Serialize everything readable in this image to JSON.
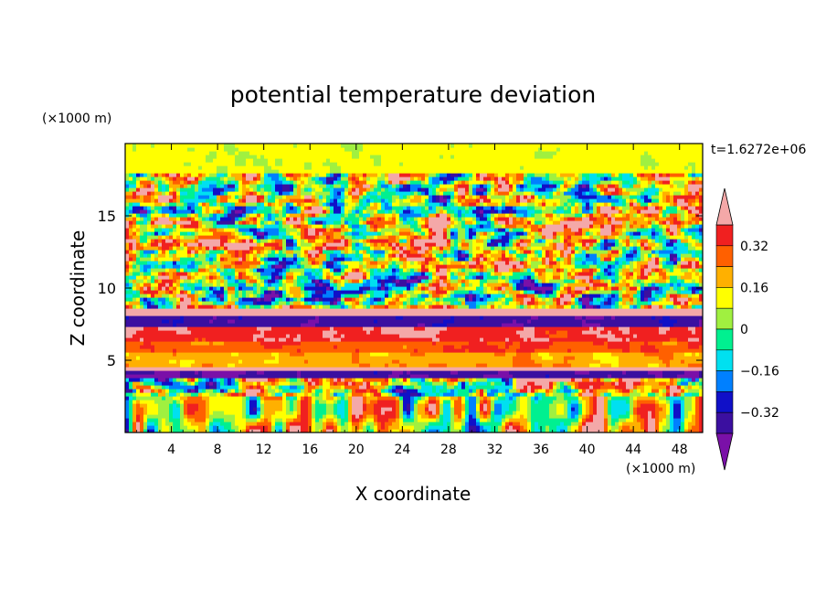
{
  "chart_data": {
    "type": "heatmap",
    "title": "potential temperature deviation",
    "xlabel": "X coordinate",
    "ylabel": "Z coordinate",
    "x_unit": "(×1000 m)",
    "y_unit": "(×1000 m)",
    "time_label": "t=1.6272e+06",
    "xlim": [
      0,
      50
    ],
    "ylim": [
      0,
      20
    ],
    "x_ticks": [
      "4",
      "8",
      "12",
      "16",
      "20",
      "24",
      "28",
      "32",
      "36",
      "40",
      "44",
      "48"
    ],
    "x_tick_values": [
      4,
      8,
      12,
      16,
      20,
      24,
      28,
      32,
      36,
      40,
      44,
      48
    ],
    "y_ticks": [
      "5",
      "10",
      "15"
    ],
    "y_tick_values": [
      5,
      10,
      15
    ],
    "colorbar": {
      "levels": [
        -0.48,
        -0.4,
        -0.32,
        -0.24,
        -0.16,
        -0.08,
        0,
        0.08,
        0.16,
        0.24,
        0.32,
        0.4,
        0.48
      ],
      "labels": [
        "0.32",
        "0.16",
        "0",
        "−0.16",
        "−0.32"
      ],
      "label_values": [
        0.32,
        0.16,
        0,
        -0.16,
        -0.32
      ],
      "colors": [
        "#7a10a8",
        "#3b0fa0",
        "#1010c8",
        "#0080ff",
        "#00e0f0",
        "#00f090",
        "#a0f040",
        "#ffff00",
        "#ffb000",
        "#ff6000",
        "#f02020",
        "#f4a8a8"
      ],
      "extend": "both"
    },
    "layers_note": "",
    "bands": [
      {
        "z_range": [
          0,
          2.5
        ],
        "value": -0.08
      },
      {
        "z_range": [
          3.8,
          4.3
        ],
        "value": -0.48
      },
      {
        "z_range": [
          4.3,
          4.6
        ],
        "value": 0.48
      },
      {
        "z_range": [
          4.6,
          5.6
        ],
        "value": 0.12
      },
      {
        "z_range": [
          5.6,
          6.4
        ],
        "value": 0.22
      },
      {
        "z_range": [
          6.4,
          7.4
        ],
        "value": 0.3
      },
      {
        "z_range": [
          7.4,
          8.2
        ],
        "value": -0.45
      },
      {
        "z_range": [
          8.2,
          8.7
        ],
        "value": 0.48
      },
      {
        "z_range": [
          18,
          20
        ],
        "value": 0.04
      }
    ]
  }
}
